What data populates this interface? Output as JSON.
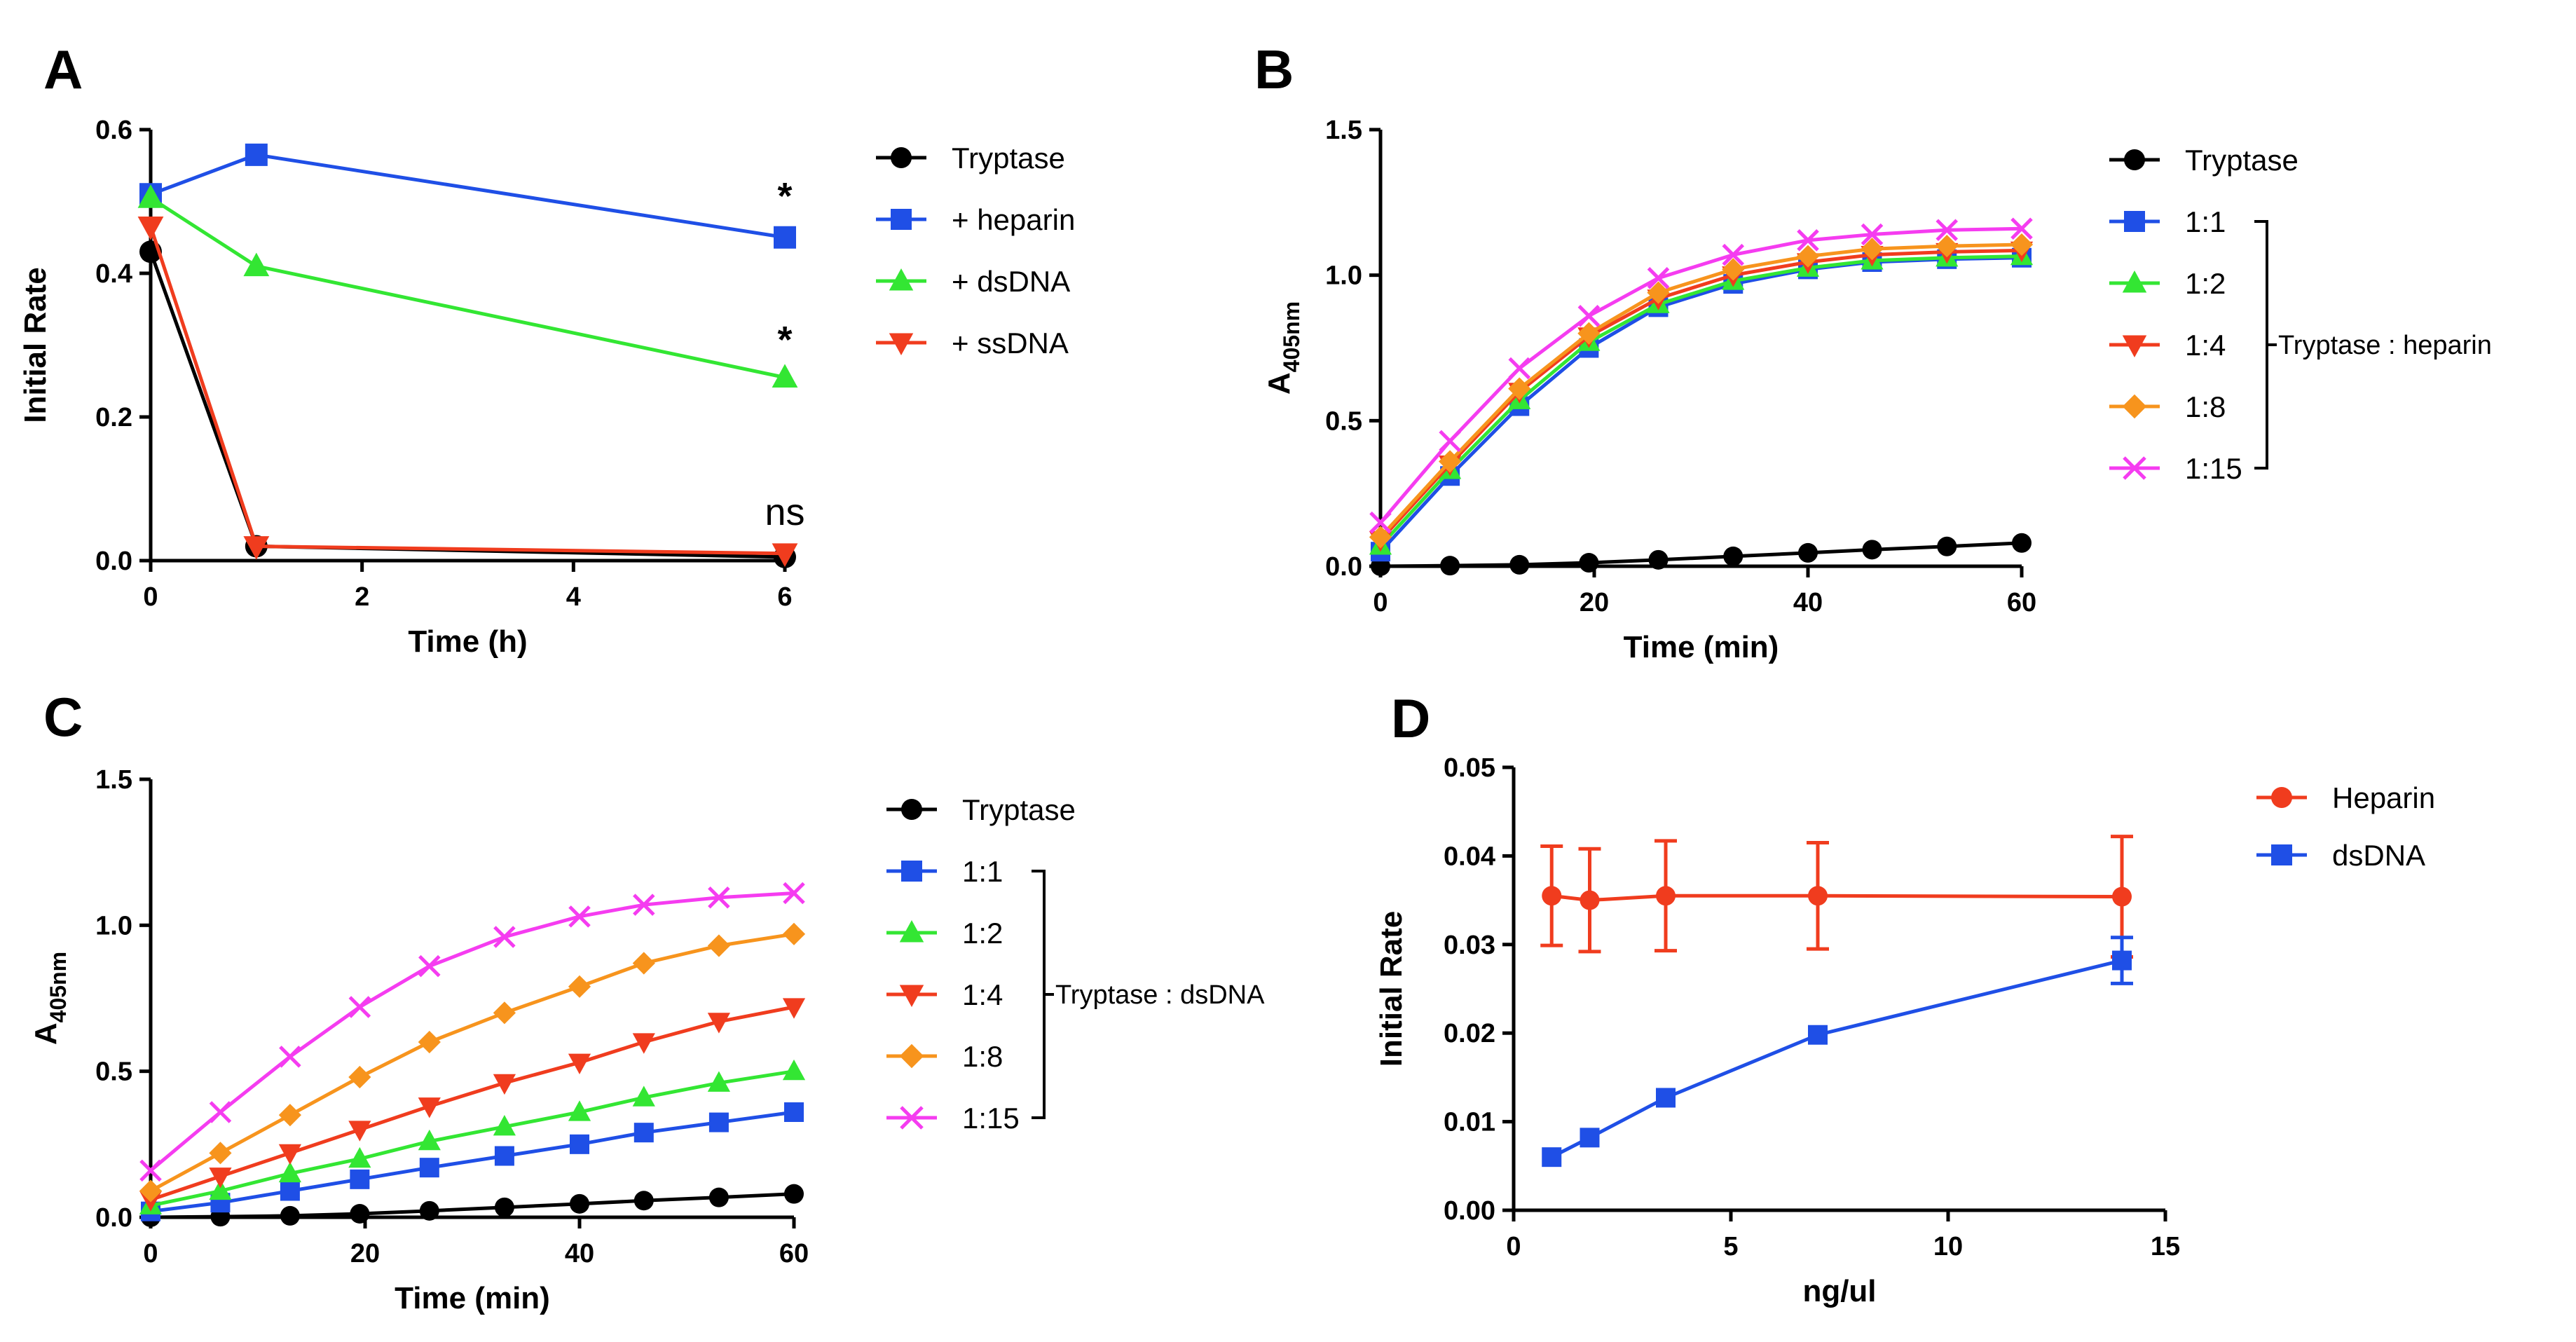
{
  "figure": {
    "panels": [
      "A",
      "B",
      "C",
      "D"
    ]
  },
  "chart_data": [
    {
      "panel": "A",
      "type": "line",
      "xlabel": "Time (h)",
      "ylabel": "Initial Rate",
      "xlim": [
        0,
        6
      ],
      "ylim": [
        0,
        0.6
      ],
      "xticks": [
        "0",
        "2",
        "4",
        "6"
      ],
      "yticks": [
        "0.0",
        "0.2",
        "0.4",
        "0.6"
      ],
      "x": [
        0,
        1,
        6
      ],
      "series": [
        {
          "name": "Tryptase",
          "marker": "circle",
          "color": "#000000",
          "values": [
            0.43,
            0.02,
            0.005
          ]
        },
        {
          "name": "+ heparin",
          "marker": "square",
          "color": "#1f4fe6",
          "values": [
            0.51,
            0.565,
            0.45
          ]
        },
        {
          "name": "+ dsDNA",
          "marker": "triangle-up",
          "color": "#33e633",
          "values": [
            0.505,
            0.41,
            0.255
          ]
        },
        {
          "name": "+ ssDNA",
          "marker": "triangle-down",
          "color": "#f03c1e",
          "values": [
            0.465,
            0.02,
            0.01
          ]
        }
      ],
      "annotations": [
        {
          "text": "*",
          "x": 6,
          "y": 0.49
        },
        {
          "text": "*",
          "x": 6,
          "y": 0.29
        },
        {
          "text": "ns",
          "x": 6,
          "y": 0.05
        }
      ],
      "legend_position": "right"
    },
    {
      "panel": "B",
      "type": "line",
      "xlabel": "Time (min)",
      "ylabel_main": "A",
      "ylabel_sub": "405nm",
      "xlim": [
        0,
        60
      ],
      "ylim": [
        0,
        1.5
      ],
      "xticks": [
        "0",
        "20",
        "40",
        "60"
      ],
      "yticks": [
        "0.0",
        "0.5",
        "1.0",
        "1.5"
      ],
      "x": [
        0,
        6.5,
        13,
        19.5,
        26,
        33,
        40,
        46,
        53,
        60
      ],
      "series": [
        {
          "name": "Tryptase",
          "marker": "circle",
          "color": "#000000",
          "values": [
            0.0,
            0.002,
            0.005,
            0.012,
            0.022,
            0.034,
            0.046,
            0.057,
            0.068,
            0.08
          ]
        },
        {
          "name": "1:1",
          "marker": "square",
          "color": "#1f4fe6",
          "values": [
            0.05,
            0.31,
            0.55,
            0.75,
            0.89,
            0.97,
            1.02,
            1.045,
            1.055,
            1.06
          ]
        },
        {
          "name": "1:2",
          "marker": "triangle-up",
          "color": "#33e633",
          "values": [
            0.07,
            0.33,
            0.57,
            0.77,
            0.9,
            0.98,
            1.025,
            1.05,
            1.06,
            1.065
          ]
        },
        {
          "name": "1:4",
          "marker": "triangle-down",
          "color": "#f03c1e",
          "values": [
            0.09,
            0.35,
            0.6,
            0.79,
            0.92,
            1.0,
            1.045,
            1.07,
            1.08,
            1.085
          ]
        },
        {
          "name": "1:8",
          "marker": "diamond",
          "color": "#f7941d",
          "values": [
            0.1,
            0.36,
            0.61,
            0.8,
            0.94,
            1.02,
            1.065,
            1.09,
            1.1,
            1.105
          ]
        },
        {
          "name": "1:15",
          "marker": "x",
          "color": "#f53cf0",
          "values": [
            0.15,
            0.43,
            0.68,
            0.86,
            0.99,
            1.07,
            1.12,
            1.14,
            1.155,
            1.16
          ]
        }
      ],
      "bracket_label": "Tryptase : heparin",
      "legend_position": "right"
    },
    {
      "panel": "C",
      "type": "line",
      "xlabel": "Time (min)",
      "ylabel_main": "A",
      "ylabel_sub": "405nm",
      "xlim": [
        0,
        60
      ],
      "ylim": [
        0,
        1.5
      ],
      "xticks": [
        "0",
        "20",
        "40",
        "60"
      ],
      "yticks": [
        "0.0",
        "0.5",
        "1.0",
        "1.5"
      ],
      "x": [
        0,
        6.5,
        13,
        19.5,
        26,
        33,
        40,
        46,
        53,
        60
      ],
      "series": [
        {
          "name": "Tryptase",
          "marker": "circle",
          "color": "#000000",
          "values": [
            0.0,
            0.002,
            0.005,
            0.012,
            0.022,
            0.034,
            0.046,
            0.057,
            0.068,
            0.08
          ]
        },
        {
          "name": "1:1",
          "marker": "square",
          "color": "#1f4fe6",
          "values": [
            0.02,
            0.05,
            0.09,
            0.13,
            0.17,
            0.21,
            0.25,
            0.29,
            0.325,
            0.36
          ]
        },
        {
          "name": "1:2",
          "marker": "triangle-up",
          "color": "#33e633",
          "values": [
            0.04,
            0.09,
            0.15,
            0.2,
            0.26,
            0.31,
            0.36,
            0.41,
            0.46,
            0.5
          ]
        },
        {
          "name": "1:4",
          "marker": "triangle-down",
          "color": "#f03c1e",
          "values": [
            0.06,
            0.14,
            0.22,
            0.3,
            0.38,
            0.46,
            0.53,
            0.6,
            0.67,
            0.72
          ]
        },
        {
          "name": "1:8",
          "marker": "diamond",
          "color": "#f7941d",
          "values": [
            0.09,
            0.22,
            0.35,
            0.48,
            0.6,
            0.7,
            0.79,
            0.87,
            0.93,
            0.97
          ]
        },
        {
          "name": "1:15",
          "marker": "x",
          "color": "#f53cf0",
          "values": [
            0.16,
            0.36,
            0.55,
            0.72,
            0.86,
            0.96,
            1.03,
            1.07,
            1.095,
            1.11
          ]
        }
      ],
      "bracket_label": "Tryptase : dsDNA",
      "legend_position": "right"
    },
    {
      "panel": "D",
      "type": "line",
      "xlabel": "ng/ul",
      "ylabel": "Initial Rate",
      "xlim": [
        0,
        15
      ],
      "ylim": [
        0,
        0.05
      ],
      "xticks": [
        "0",
        "5",
        "10",
        "15"
      ],
      "yticks": [
        "0.00",
        "0.01",
        "0.02",
        "0.03",
        "0.04",
        "0.05"
      ],
      "series": [
        {
          "name": "Heparin",
          "marker": "circle",
          "color": "#f03c1e",
          "x": [
            0.875,
            1.75,
            3.5,
            7,
            14
          ],
          "values": [
            0.0355,
            0.035,
            0.0355,
            0.0355,
            0.0354
          ],
          "errors": [
            0.0056,
            0.0058,
            0.0062,
            0.006,
            0.0068
          ]
        },
        {
          "name": "dsDNA",
          "marker": "square",
          "color": "#1f4fe6",
          "x": [
            0.875,
            1.75,
            3.5,
            7,
            14
          ],
          "values": [
            0.006,
            0.0082,
            0.0127,
            0.0198,
            0.0282
          ],
          "errors": [
            0,
            0,
            0,
            0,
            0.0026
          ]
        }
      ],
      "legend_position": "top-right"
    }
  ]
}
